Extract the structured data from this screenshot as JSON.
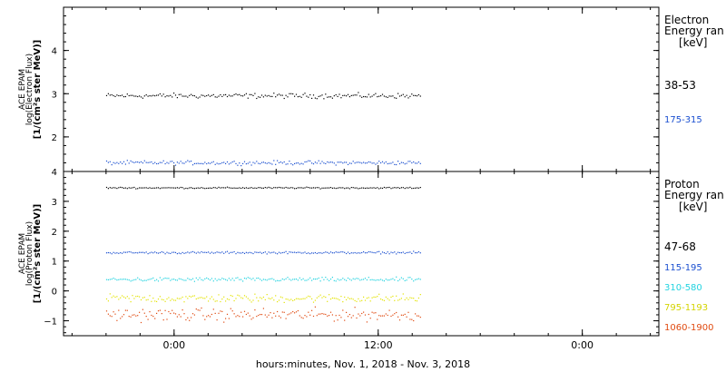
{
  "chart_data": [
    {
      "type": "scatter",
      "ylabel_lines": [
        "ACE EPAM",
        "log(Electron Flux)",
        "[1/(cm²s ster MeV)]"
      ],
      "ylim": [
        1.2,
        5
      ],
      "yticks": [
        2,
        3,
        4
      ],
      "legend_title": [
        "Electron",
        "Energy ran",
        "[keV]"
      ],
      "series": [
        {
          "name": "38-53",
          "color": "#000000",
          "mean": 2.95,
          "noise": 0.05,
          "start_h": -4,
          "end_h": 14.5
        },
        {
          "name": "175-315",
          "color": "#1a4fd0",
          "mean": 1.4,
          "noise": 0.04,
          "start_h": -4,
          "end_h": 14.5
        }
      ]
    },
    {
      "type": "scatter",
      "ylabel_lines": [
        "ACE EPAM",
        "log(Proton Flux)",
        "[1/(cm²s ster MeV)]"
      ],
      "ylim": [
        -1.5,
        4
      ],
      "yticks": [
        -1,
        0,
        1,
        2,
        3,
        4
      ],
      "legend_title": [
        "Proton",
        "Energy ran",
        "[keV]"
      ],
      "series": [
        {
          "name": "47-68",
          "color": "#000000",
          "mean": 3.45,
          "noise": 0.02,
          "start_h": -4,
          "end_h": 14.5
        },
        {
          "name": "115-195",
          "color": "#1a4fd0",
          "mean": 1.28,
          "noise": 0.03,
          "start_h": -4,
          "end_h": 14.5
        },
        {
          "name": "310-580",
          "color": "#22d3e0",
          "mean": 0.38,
          "noise": 0.06,
          "start_h": -4,
          "end_h": 14.5
        },
        {
          "name": "795-1193",
          "color": "#e3e300",
          "mean": -0.25,
          "noise": 0.12,
          "start_h": -4,
          "end_h": 14.5
        },
        {
          "name": "1060-1900",
          "color": "#e04a10",
          "mean": -0.8,
          "noise": 0.18,
          "start_h": -4,
          "end_h": 14.5
        }
      ]
    }
  ],
  "x_axis": {
    "label": "hours:minutes, Nov.  1, 2018 - Nov.  3, 2018",
    "xlim_hours": [
      -6.5,
      28.5
    ],
    "ticks": [
      {
        "h": 0,
        "label": "0:00"
      },
      {
        "h": 12,
        "label": "12:00"
      },
      {
        "h": 24,
        "label": "0:00"
      }
    ],
    "minor_step_hours": 2
  }
}
